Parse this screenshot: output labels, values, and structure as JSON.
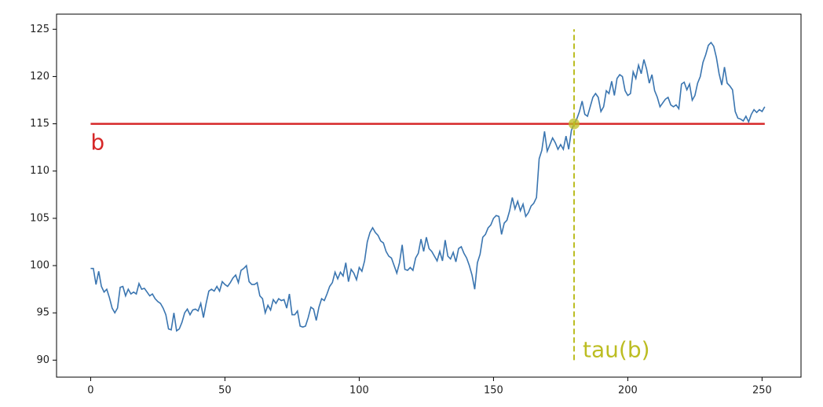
{
  "chart_data": {
    "type": "line",
    "x": [
      0,
      1,
      2,
      3,
      4,
      5,
      6,
      7,
      8,
      9,
      10,
      11,
      12,
      13,
      14,
      15,
      16,
      17,
      18,
      19,
      20,
      21,
      22,
      23,
      24,
      25,
      26,
      27,
      28,
      29,
      30,
      31,
      32,
      33,
      34,
      35,
      36,
      37,
      38,
      39,
      40,
      41,
      42,
      43,
      44,
      45,
      46,
      47,
      48,
      49,
      50,
      51,
      52,
      53,
      54,
      55,
      56,
      57,
      58,
      59,
      60,
      61,
      62,
      63,
      64,
      65,
      66,
      67,
      68,
      69,
      70,
      71,
      72,
      73,
      74,
      75,
      76,
      77,
      78,
      79,
      80,
      81,
      82,
      83,
      84,
      85,
      86,
      87,
      88,
      89,
      90,
      91,
      92,
      93,
      94,
      95,
      96,
      97,
      98,
      99,
      100,
      101,
      102,
      103,
      104,
      105,
      106,
      107,
      108,
      109,
      110,
      111,
      112,
      113,
      114,
      115,
      116,
      117,
      118,
      119,
      120,
      121,
      122,
      123,
      124,
      125,
      126,
      127,
      128,
      129,
      130,
      131,
      132,
      133,
      134,
      135,
      136,
      137,
      138,
      139,
      140,
      141,
      142,
      143,
      144,
      145,
      146,
      147,
      148,
      149,
      150,
      151,
      152,
      153,
      154,
      155,
      156,
      157,
      158,
      159,
      160,
      161,
      162,
      163,
      164,
      165,
      166,
      167,
      168,
      169,
      170,
      171,
      172,
      173,
      174,
      175,
      176,
      177,
      178,
      179,
      180,
      181,
      182,
      183,
      184,
      185,
      186,
      187,
      188,
      189,
      190,
      191,
      192,
      193,
      194,
      195,
      196,
      197,
      198,
      199,
      200,
      201,
      202,
      203,
      204,
      205,
      206,
      207,
      208,
      209,
      210,
      211,
      212,
      213,
      214,
      215,
      216,
      217,
      218,
      219,
      220,
      221,
      222,
      223,
      224,
      225,
      226,
      227,
      228,
      229,
      230,
      231,
      232,
      233,
      234,
      235,
      236,
      237,
      238,
      239,
      240,
      241,
      242,
      243,
      244,
      245,
      246,
      247,
      248,
      249,
      250,
      251
    ],
    "values": [
      99.7,
      99.7,
      98,
      99.4,
      97.8,
      97.2,
      97.5,
      96.6,
      95.5,
      95,
      95.5,
      97.7,
      97.8,
      96.8,
      97.5,
      97,
      97.2,
      97,
      98.1,
      97.5,
      97.6,
      97.2,
      96.8,
      97,
      96.5,
      96.2,
      96,
      95.5,
      94.8,
      93.3,
      93.2,
      95,
      93.1,
      93.3,
      94,
      95,
      95.4,
      94.8,
      95.3,
      95.4,
      95.2,
      96,
      94.5,
      96,
      97.3,
      97.5,
      97.3,
      97.8,
      97.3,
      98.3,
      98,
      97.8,
      98.2,
      98.7,
      99,
      98.2,
      99.5,
      99.7,
      100,
      98.3,
      98,
      98,
      98.2,
      96.8,
      96.5,
      95,
      95.8,
      95.3,
      96.4,
      96,
      96.5,
      96.3,
      96.4,
      95.5,
      97,
      94.8,
      94.8,
      95.2,
      93.6,
      93.5,
      93.6,
      94.5,
      95.6,
      95.4,
      94.2,
      95.6,
      96.5,
      96.3,
      97,
      97.8,
      98.2,
      99.3,
      98.6,
      99.3,
      98.9,
      100.3,
      98.3,
      99.6,
      99.2,
      98.5,
      99.8,
      99.4,
      100.5,
      102.5,
      103.5,
      104,
      103.5,
      103.2,
      102.6,
      102.4,
      101.5,
      101,
      100.8,
      100,
      99.2,
      100.3,
      102.2,
      99.6,
      99.5,
      99.8,
      99.5,
      100.8,
      101.3,
      102.8,
      101.5,
      103,
      101.8,
      101.5,
      101,
      100.5,
      101.5,
      100.5,
      102.7,
      101,
      100.7,
      101.4,
      100.4,
      101.8,
      102,
      101.3,
      100.8,
      100,
      99,
      97.5,
      100.3,
      101.2,
      103,
      103.3,
      104,
      104.3,
      105,
      105.3,
      105.2,
      103.3,
      104.5,
      104.8,
      105.8,
      107.2,
      106,
      106.8,
      105.8,
      106.5,
      105.2,
      105.6,
      106.3,
      106.6,
      107.2,
      111.3,
      112.2,
      114.2,
      112.1,
      112.8,
      113.5,
      113,
      112.3,
      112.8,
      112.3,
      113.7,
      112.3,
      114.3,
      115,
      115.5,
      116.3,
      117.4,
      116,
      115.8,
      116.8,
      117.8,
      118.2,
      117.8,
      116.3,
      116.8,
      118.5,
      118.2,
      119.5,
      118,
      119.8,
      120.2,
      120,
      118.5,
      118,
      118.2,
      120.5,
      119.8,
      121.2,
      120.3,
      121.8,
      120.8,
      119.3,
      120.2,
      118.5,
      117.8,
      116.8,
      117.2,
      117.6,
      117.8,
      117,
      116.8,
      117,
      116.6,
      119.2,
      119.4,
      118.6,
      119.2,
      117.5,
      118,
      119.3,
      120,
      121.5,
      122.3,
      123.3,
      123.6,
      123.2,
      122,
      120.3,
      119.1,
      121,
      119.3,
      119,
      118.6,
      116.3,
      115.6,
      115.5,
      115.3,
      115.8,
      115.2,
      116,
      116.5,
      116.2,
      116.5,
      116.3,
      116.8
    ],
    "color": "#3a75b0",
    "xlim": [
      -12.7,
      264.5
    ],
    "ylim": [
      88.2,
      126.6
    ],
    "xticks": [
      0,
      50,
      100,
      150,
      200,
      250
    ],
    "yticks": [
      90,
      95,
      100,
      105,
      110,
      115,
      120,
      125
    ],
    "hline": {
      "y": 115,
      "xmin": 0,
      "xmax": 251,
      "color": "#d62728",
      "label": "b"
    },
    "vline": {
      "x": 180,
      "ymin": 90,
      "ymax": 125,
      "color": "#bcbd22",
      "label": "tau(b)"
    },
    "point": {
      "x": 180,
      "y": 115,
      "color": "#bcbd22"
    }
  }
}
